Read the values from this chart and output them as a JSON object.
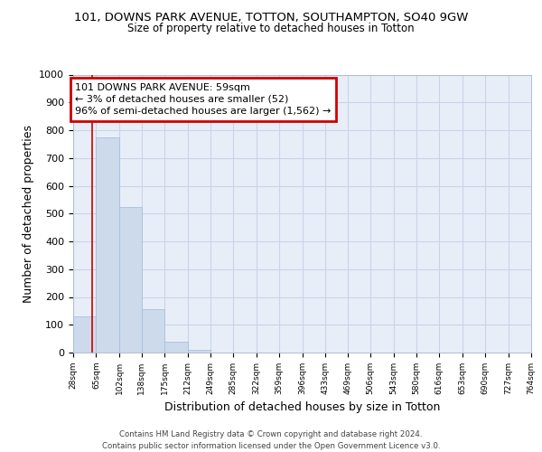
{
  "title1": "101, DOWNS PARK AVENUE, TOTTON, SOUTHAMPTON, SO40 9GW",
  "title2": "Size of property relative to detached houses in Totton",
  "xlabel": "Distribution of detached houses by size in Totton",
  "ylabel": "Number of detached properties",
  "bin_edges": [
    28,
    65,
    102,
    138,
    175,
    212,
    249,
    285,
    322,
    359,
    396,
    433,
    469,
    506,
    543,
    580,
    616,
    653,
    690,
    727,
    764
  ],
  "bar_heights": [
    130,
    775,
    525,
    155,
    40,
    10,
    0,
    0,
    0,
    0,
    0,
    0,
    0,
    0,
    0,
    0,
    0,
    0,
    0,
    0
  ],
  "bar_color": "#ccdaec",
  "bar_edgecolor": "#a8c0dc",
  "property_sqm": 59,
  "annotation_text": "101 DOWNS PARK AVENUE: 59sqm\n← 3% of detached houses are smaller (52)\n96% of semi-detached houses are larger (1,562) →",
  "annotation_box_color": "#cc0000",
  "vline_color": "#cc0000",
  "ylim": [
    0,
    1000
  ],
  "yticks": [
    0,
    100,
    200,
    300,
    400,
    500,
    600,
    700,
    800,
    900,
    1000
  ],
  "grid_color": "#c8d4e8",
  "background_color": "#e8eef8",
  "footer_text": "Contains HM Land Registry data © Crown copyright and database right 2024.\nContains public sector information licensed under the Open Government Licence v3.0.",
  "tick_labels": [
    "28sqm",
    "65sqm",
    "102sqm",
    "138sqm",
    "175sqm",
    "212sqm",
    "249sqm",
    "285sqm",
    "322sqm",
    "359sqm",
    "396sqm",
    "433sqm",
    "469sqm",
    "506sqm",
    "543sqm",
    "580sqm",
    "616sqm",
    "653sqm",
    "690sqm",
    "727sqm",
    "764sqm"
  ]
}
